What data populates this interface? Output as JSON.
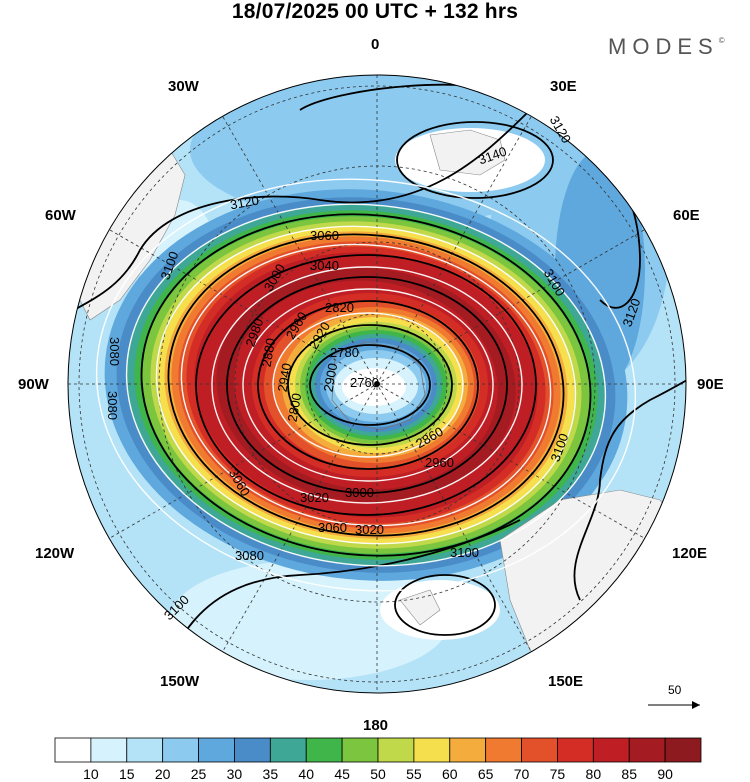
{
  "header": {
    "title": "18/07/2025  00 UTC  + 132 hrs",
    "brand": "MODES",
    "brand_mark": "©"
  },
  "map": {
    "projection": "south-polar-stereographic",
    "longitude_labels": {
      "top": "0",
      "bottom": "180",
      "left": "90W",
      "right": "90E",
      "upper_left_1": "30W",
      "upper_left_2": "60W",
      "upper_right_1": "30E",
      "upper_right_2": "60E",
      "lower_left_1": "120W",
      "lower_left_2": "150W",
      "lower_right_1": "120E",
      "lower_right_2": "150E"
    },
    "contour_labels": [
      "3140",
      "3120",
      "3120",
      "3120",
      "3100",
      "3100",
      "3100",
      "3100",
      "3100",
      "3080",
      "3080",
      "3080",
      "3060",
      "3060",
      "3060",
      "3040",
      "3020",
      "3020",
      "3000",
      "3000",
      "2980",
      "2960",
      "2960",
      "2940",
      "2920",
      "2900",
      "2880",
      "2860",
      "2820",
      "2800",
      "2780",
      "2760",
      "2740"
    ],
    "wind_reference_vector_label": "50",
    "colors": {
      "land": "#f2f2f2",
      "contour": "#000000",
      "vector": "#ffffff"
    }
  },
  "colorbar": {
    "ticks": [
      "10",
      "15",
      "20",
      "25",
      "30",
      "35",
      "40",
      "45",
      "50",
      "55",
      "60",
      "65",
      "70",
      "75",
      "80",
      "85",
      "90"
    ],
    "colors": [
      "#ffffff",
      "#d6f2fc",
      "#b4e3f8",
      "#8ccbef",
      "#5fa8dd",
      "#4a8cc8",
      "#3ea796",
      "#3fb54a",
      "#7bc53f",
      "#bfd94a",
      "#f6df4d",
      "#f4ad3d",
      "#f07a2f",
      "#e3512a",
      "#d42d26",
      "#bf1f24",
      "#a41c22",
      "#8c1a1e"
    ]
  }
}
